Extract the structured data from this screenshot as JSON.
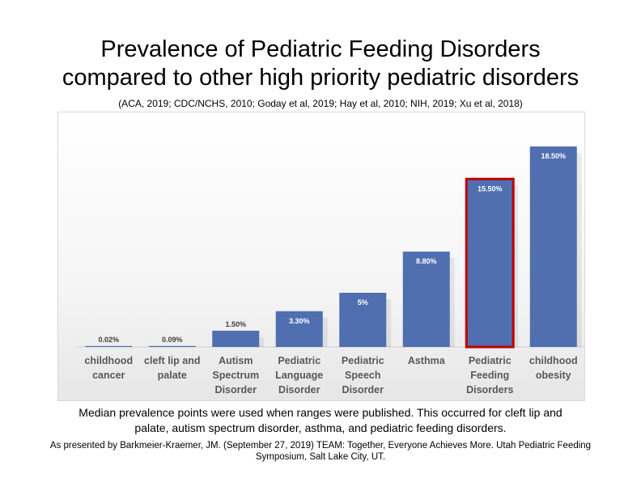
{
  "title_line1": "Prevalence of Pediatric Feeding Disorders",
  "title_line2": "compared to other high priority pediatric disorders",
  "sources": "(ACA, 2019; CDC/NCHS, 2010; Goday et al, 2019; Hay et al, 2010; NIH, 2019; Xu et al, 2018)",
  "note_line1": "Median prevalence points were used when ranges were published.  This occurred for cleft lip and",
  "note_line2": "palate, autism spectrum disorder, asthma, and pediatric feeding disorders.",
  "credit_line1": "As presented by Barkmeier-Kraemer, JM. (September 27, 2019) TEAM: Together, Everyone Achieves More. Utah Pediatric Feeding",
  "credit_line2": "Symposium, Salt Lake City, UT.",
  "colors": {
    "bar": "#4f6fb0",
    "highlight_border": "#c00000"
  },
  "chart_data": {
    "type": "bar",
    "title": "Prevalence of Pediatric Feeding Disorders compared to other high priority pediatric disorders",
    "xlabel": "",
    "ylabel": "",
    "ylim": [
      0,
      20
    ],
    "grid": false,
    "categories": [
      [
        "childhood",
        "cancer"
      ],
      [
        "cleft lip and",
        "palate"
      ],
      [
        "Autism",
        "Spectrum",
        "Disorder"
      ],
      [
        "Pediatric",
        "Language",
        "Disorder"
      ],
      [
        "Pediatric",
        "Speech",
        "Disorder"
      ],
      [
        "Asthma"
      ],
      [
        "Pediatric",
        "Feeding",
        "Disorders"
      ],
      [
        "childhood",
        "obesity"
      ]
    ],
    "values": [
      0.02,
      0.09,
      1.5,
      3.3,
      5,
      8.8,
      15.5,
      18.5
    ],
    "data_labels": [
      "0.02%",
      "0.09%",
      "1.50%",
      "3.30%",
      "5%",
      "8.80%",
      "15.50%",
      "18.50%"
    ],
    "highlight_index": 6
  }
}
